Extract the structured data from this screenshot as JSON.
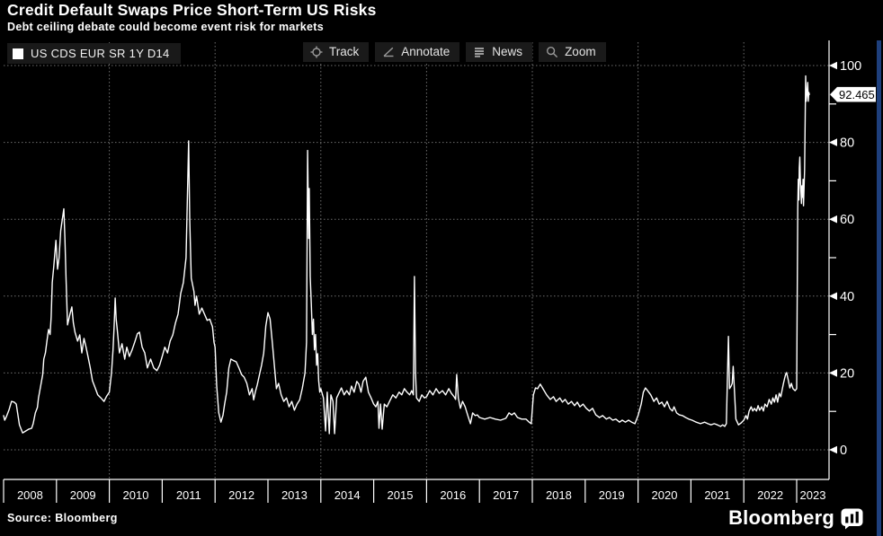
{
  "header": {
    "title": "Credit Default Swaps Price Short-Term US Risks",
    "subtitle": "Debt ceiling debate could become event risk for markets"
  },
  "legend": {
    "label": "US CDS EUR SR 1Y D14",
    "swatch_color": "#ffffff"
  },
  "toolbar": {
    "buttons": [
      {
        "label": "Track",
        "icon": "crosshair-icon"
      },
      {
        "label": "Annotate",
        "icon": "pencil-line-icon"
      },
      {
        "label": "News",
        "icon": "news-lines-icon"
      },
      {
        "label": "Zoom",
        "icon": "magnifier-icon"
      }
    ]
  },
  "price_label": {
    "value": "92.465"
  },
  "footer": {
    "source": "Source: Bloomberg",
    "brand": "Bloomberg"
  },
  "chart_data": {
    "type": "line",
    "title": "Credit Default Swaps Price Short-Term US Risks",
    "series_name": "US CDS EUR SR 1Y D14",
    "line_color": "#ffffff",
    "background_color": "#000000",
    "grid_color": "#6e6e6e",
    "grid": "dotted",
    "legend_position": "top-left",
    "ylim": [
      0,
      100
    ],
    "y_major_ticks": [
      0,
      20,
      40,
      60,
      80,
      100
    ],
    "y_minor_ticks": [
      10,
      30,
      50,
      70,
      90
    ],
    "x_labels": [
      "2008",
      "2009",
      "2010",
      "2011",
      "2012",
      "2013",
      "2014",
      "2015",
      "2016",
      "2017",
      "2018",
      "2019",
      "2020",
      "2021",
      "2022",
      "2023"
    ],
    "x_gridline_years": [
      2010,
      2012,
      2014,
      2016,
      2018,
      2020,
      2022
    ],
    "last_value": 92.465,
    "points": [
      [
        2008.0,
        8.9
      ],
      [
        2008.02,
        7.7
      ],
      [
        2008.05,
        8.5
      ],
      [
        2008.1,
        10.3
      ],
      [
        2008.15,
        12.6
      ],
      [
        2008.2,
        12.4
      ],
      [
        2008.24,
        11.9
      ],
      [
        2008.3,
        6.5
      ],
      [
        2008.36,
        4.4
      ],
      [
        2008.42,
        4.9
      ],
      [
        2008.48,
        5.4
      ],
      [
        2008.53,
        5.6
      ],
      [
        2008.56,
        6.8
      ],
      [
        2008.6,
        9.6
      ],
      [
        2008.64,
        11.0
      ],
      [
        2008.66,
        13.5
      ],
      [
        2008.7,
        16.6
      ],
      [
        2008.74,
        19.6
      ],
      [
        2008.76,
        23.6
      ],
      [
        2008.79,
        25.2
      ],
      [
        2008.82,
        28.3
      ],
      [
        2008.85,
        31.3
      ],
      [
        2008.88,
        30.0
      ],
      [
        2008.9,
        34.6
      ],
      [
        2008.92,
        43.5
      ],
      [
        2008.95,
        48.0
      ],
      [
        2008.99,
        54.5
      ],
      [
        2009.02,
        47.0
      ],
      [
        2009.05,
        50.0
      ],
      [
        2009.08,
        57.0
      ],
      [
        2009.11,
        60.0
      ],
      [
        2009.14,
        62.7
      ],
      [
        2009.16,
        55.0
      ],
      [
        2009.18,
        45.0
      ],
      [
        2009.21,
        32.5
      ],
      [
        2009.25,
        35.0
      ],
      [
        2009.29,
        37.2
      ],
      [
        2009.32,
        33.0
      ],
      [
        2009.35,
        30.6
      ],
      [
        2009.4,
        28.3
      ],
      [
        2009.44,
        29.9
      ],
      [
        2009.48,
        25.2
      ],
      [
        2009.52,
        29.0
      ],
      [
        2009.56,
        26.7
      ],
      [
        2009.6,
        24.0
      ],
      [
        2009.64,
        21.3
      ],
      [
        2009.68,
        18.0
      ],
      [
        2009.72,
        16.6
      ],
      [
        2009.78,
        14.3
      ],
      [
        2009.84,
        13.5
      ],
      [
        2009.9,
        12.6
      ],
      [
        2009.95,
        14.0
      ],
      [
        2010.0,
        15.0
      ],
      [
        2010.04,
        20.0
      ],
      [
        2010.07,
        26.0
      ],
      [
        2010.09,
        32.0
      ],
      [
        2010.11,
        39.5
      ],
      [
        2010.13,
        34.0
      ],
      [
        2010.15,
        31.3
      ],
      [
        2010.19,
        25.2
      ],
      [
        2010.24,
        27.6
      ],
      [
        2010.29,
        23.6
      ],
      [
        2010.33,
        26.7
      ],
      [
        2010.38,
        24.3
      ],
      [
        2010.43,
        26.0
      ],
      [
        2010.48,
        28.0
      ],
      [
        2010.53,
        30.2
      ],
      [
        2010.57,
        30.6
      ],
      [
        2010.62,
        26.7
      ],
      [
        2010.67,
        25.2
      ],
      [
        2010.72,
        21.3
      ],
      [
        2010.78,
        23.6
      ],
      [
        2010.84,
        21.3
      ],
      [
        2010.9,
        20.6
      ],
      [
        2010.95,
        22.0
      ],
      [
        2011.0,
        24.3
      ],
      [
        2011.05,
        26.7
      ],
      [
        2011.1,
        25.2
      ],
      [
        2011.15,
        28.3
      ],
      [
        2011.2,
        29.9
      ],
      [
        2011.25,
        33.0
      ],
      [
        2011.3,
        35.3
      ],
      [
        2011.35,
        40.7
      ],
      [
        2011.4,
        43.5
      ],
      [
        2011.45,
        50.0
      ],
      [
        2011.5,
        80.4
      ],
      [
        2011.52,
        60.0
      ],
      [
        2011.55,
        44.7
      ],
      [
        2011.6,
        41.2
      ],
      [
        2011.62,
        37.6
      ],
      [
        2011.65,
        40.0
      ],
      [
        2011.7,
        35.3
      ],
      [
        2011.75,
        36.9
      ],
      [
        2011.8,
        35.3
      ],
      [
        2011.85,
        33.7
      ],
      [
        2011.9,
        34.0
      ],
      [
        2011.95,
        32.0
      ],
      [
        2011.98,
        28.0
      ],
      [
        2012.0,
        26.7
      ],
      [
        2012.03,
        16.6
      ],
      [
        2012.07,
        9.6
      ],
      [
        2012.11,
        7.2
      ],
      [
        2012.15,
        9.0
      ],
      [
        2012.18,
        11.9
      ],
      [
        2012.22,
        15.0
      ],
      [
        2012.26,
        21.3
      ],
      [
        2012.3,
        23.6
      ],
      [
        2012.35,
        23.2
      ],
      [
        2012.4,
        22.9
      ],
      [
        2012.45,
        21.3
      ],
      [
        2012.5,
        19.6
      ],
      [
        2012.55,
        18.9
      ],
      [
        2012.6,
        17.3
      ],
      [
        2012.65,
        14.3
      ],
      [
        2012.7,
        15.9
      ],
      [
        2012.73,
        13.0
      ],
      [
        2012.76,
        15.0
      ],
      [
        2012.8,
        17.0
      ],
      [
        2012.84,
        19.6
      ],
      [
        2012.88,
        22.0
      ],
      [
        2012.92,
        25.2
      ],
      [
        2012.96,
        32.2
      ],
      [
        2013.0,
        35.7
      ],
      [
        2013.04,
        34.0
      ],
      [
        2013.08,
        28.3
      ],
      [
        2013.12,
        22.0
      ],
      [
        2013.16,
        15.9
      ],
      [
        2013.2,
        17.3
      ],
      [
        2013.25,
        14.3
      ],
      [
        2013.3,
        12.6
      ],
      [
        2013.35,
        13.5
      ],
      [
        2013.4,
        11.2
      ],
      [
        2013.45,
        12.6
      ],
      [
        2013.5,
        10.3
      ],
      [
        2013.55,
        11.9
      ],
      [
        2013.6,
        13.0
      ],
      [
        2013.65,
        16.0
      ],
      [
        2013.7,
        20.0
      ],
      [
        2013.73,
        28.0
      ],
      [
        2013.75,
        77.9
      ],
      [
        2013.77,
        55.0
      ],
      [
        2013.78,
        68.0
      ],
      [
        2013.8,
        45.0
      ],
      [
        2013.82,
        38.0
      ],
      [
        2013.84,
        30.0
      ],
      [
        2013.86,
        34.0
      ],
      [
        2013.88,
        26.0
      ],
      [
        2013.9,
        30.0
      ],
      [
        2013.92,
        22.0
      ],
      [
        2013.94,
        25.0
      ],
      [
        2013.96,
        18.0
      ],
      [
        2013.98,
        15.0
      ],
      [
        2014.0,
        15.9
      ],
      [
        2014.05,
        13.5
      ],
      [
        2014.09,
        4.9
      ],
      [
        2014.12,
        15.0
      ],
      [
        2014.16,
        4.2
      ],
      [
        2014.19,
        14.3
      ],
      [
        2014.23,
        12.6
      ],
      [
        2014.26,
        4.2
      ],
      [
        2014.3,
        13.5
      ],
      [
        2014.34,
        14.7
      ],
      [
        2014.39,
        16.1
      ],
      [
        2014.44,
        14.3
      ],
      [
        2014.49,
        15.4
      ],
      [
        2014.54,
        14.3
      ],
      [
        2014.58,
        16.6
      ],
      [
        2014.63,
        15.0
      ],
      [
        2014.68,
        17.8
      ],
      [
        2014.72,
        17.1
      ],
      [
        2014.76,
        15.0
      ],
      [
        2014.8,
        17.8
      ],
      [
        2014.85,
        18.9
      ],
      [
        2014.9,
        15.0
      ],
      [
        2014.95,
        13.5
      ],
      [
        2015.0,
        11.9
      ],
      [
        2015.04,
        11.2
      ],
      [
        2015.08,
        12.6
      ],
      [
        2015.1,
        5.6
      ],
      [
        2015.13,
        11.9
      ],
      [
        2015.16,
        5.4
      ],
      [
        2015.2,
        11.9
      ],
      [
        2015.25,
        11.2
      ],
      [
        2015.3,
        12.6
      ],
      [
        2015.36,
        14.3
      ],
      [
        2015.42,
        13.5
      ],
      [
        2015.48,
        15.0
      ],
      [
        2015.53,
        14.3
      ],
      [
        2015.58,
        15.9
      ],
      [
        2015.63,
        15.0
      ],
      [
        2015.68,
        14.3
      ],
      [
        2015.72,
        15.4
      ],
      [
        2015.75,
        14.3
      ],
      [
        2015.77,
        45.1
      ],
      [
        2015.79,
        20.0
      ],
      [
        2015.81,
        13.5
      ],
      [
        2015.86,
        12.6
      ],
      [
        2015.91,
        14.3
      ],
      [
        2015.96,
        13.5
      ],
      [
        2016.0,
        13.8
      ],
      [
        2016.06,
        15.4
      ],
      [
        2016.12,
        14.3
      ],
      [
        2016.18,
        15.9
      ],
      [
        2016.24,
        14.7
      ],
      [
        2016.3,
        15.4
      ],
      [
        2016.36,
        14.3
      ],
      [
        2016.42,
        15.9
      ],
      [
        2016.47,
        14.7
      ],
      [
        2016.52,
        13.8
      ],
      [
        2016.55,
        13.1
      ],
      [
        2016.57,
        19.6
      ],
      [
        2016.6,
        13.5
      ],
      [
        2016.64,
        10.8
      ],
      [
        2016.68,
        12.6
      ],
      [
        2016.73,
        11.2
      ],
      [
        2016.78,
        8.9
      ],
      [
        2016.83,
        6.8
      ],
      [
        2016.87,
        9.6
      ],
      [
        2016.92,
        8.9
      ],
      [
        2016.96,
        9.1
      ],
      [
        2017.0,
        8.4
      ],
      [
        2017.1,
        8.0
      ],
      [
        2017.2,
        8.4
      ],
      [
        2017.3,
        8.0
      ],
      [
        2017.4,
        7.7
      ],
      [
        2017.5,
        8.2
      ],
      [
        2017.56,
        9.6
      ],
      [
        2017.61,
        9.1
      ],
      [
        2017.66,
        9.6
      ],
      [
        2017.72,
        8.4
      ],
      [
        2017.8,
        8.0
      ],
      [
        2017.88,
        8.0
      ],
      [
        2017.94,
        7.2
      ],
      [
        2017.98,
        6.8
      ],
      [
        2018.02,
        14.3
      ],
      [
        2018.06,
        16.1
      ],
      [
        2018.1,
        15.9
      ],
      [
        2018.15,
        17.1
      ],
      [
        2018.2,
        15.9
      ],
      [
        2018.27,
        14.3
      ],
      [
        2018.34,
        13.1
      ],
      [
        2018.4,
        13.8
      ],
      [
        2018.45,
        12.6
      ],
      [
        2018.52,
        13.5
      ],
      [
        2018.57,
        12.4
      ],
      [
        2018.62,
        13.1
      ],
      [
        2018.68,
        11.9
      ],
      [
        2018.74,
        12.6
      ],
      [
        2018.8,
        11.5
      ],
      [
        2018.85,
        12.4
      ],
      [
        2018.9,
        11.2
      ],
      [
        2018.96,
        11.9
      ],
      [
        2019.02,
        10.8
      ],
      [
        2019.08,
        10.1
      ],
      [
        2019.14,
        10.8
      ],
      [
        2019.2,
        9.1
      ],
      [
        2019.27,
        8.4
      ],
      [
        2019.33,
        8.9
      ],
      [
        2019.4,
        8.0
      ],
      [
        2019.46,
        8.4
      ],
      [
        2019.52,
        7.7
      ],
      [
        2019.58,
        8.0
      ],
      [
        2019.65,
        7.2
      ],
      [
        2019.7,
        7.7
      ],
      [
        2019.76,
        7.2
      ],
      [
        2019.82,
        7.7
      ],
      [
        2019.88,
        7.2
      ],
      [
        2019.94,
        6.8
      ],
      [
        2020.0,
        8.9
      ],
      [
        2020.06,
        11.9
      ],
      [
        2020.1,
        15.0
      ],
      [
        2020.14,
        16.1
      ],
      [
        2020.18,
        15.4
      ],
      [
        2020.24,
        14.3
      ],
      [
        2020.3,
        12.6
      ],
      [
        2020.35,
        13.5
      ],
      [
        2020.4,
        11.9
      ],
      [
        2020.45,
        12.4
      ],
      [
        2020.5,
        11.2
      ],
      [
        2020.55,
        12.6
      ],
      [
        2020.6,
        10.8
      ],
      [
        2020.65,
        10.1
      ],
      [
        2020.68,
        11.2
      ],
      [
        2020.73,
        9.6
      ],
      [
        2020.78,
        9.1
      ],
      [
        2020.84,
        8.9
      ],
      [
        2020.9,
        8.4
      ],
      [
        2020.96,
        8.0
      ],
      [
        2021.02,
        7.7
      ],
      [
        2021.1,
        7.2
      ],
      [
        2021.18,
        6.8
      ],
      [
        2021.26,
        7.2
      ],
      [
        2021.32,
        6.8
      ],
      [
        2021.38,
        6.5
      ],
      [
        2021.44,
        6.8
      ],
      [
        2021.5,
        6.5
      ],
      [
        2021.56,
        6.1
      ],
      [
        2021.6,
        6.5
      ],
      [
        2021.64,
        6.1
      ],
      [
        2021.67,
        6.8
      ],
      [
        2021.69,
        18.9
      ],
      [
        2021.71,
        29.5
      ],
      [
        2021.73,
        15.9
      ],
      [
        2021.76,
        16.6
      ],
      [
        2021.78,
        17.3
      ],
      [
        2021.8,
        21.7
      ],
      [
        2021.83,
        13.5
      ],
      [
        2021.85,
        8.0
      ],
      [
        2021.9,
        6.5
      ],
      [
        2021.95,
        7.0
      ],
      [
        2022.0,
        7.7
      ],
      [
        2022.04,
        8.9
      ],
      [
        2022.07,
        8.0
      ],
      [
        2022.1,
        10.1
      ],
      [
        2022.14,
        11.2
      ],
      [
        2022.17,
        10.1
      ],
      [
        2022.2,
        10.8
      ],
      [
        2022.24,
        10.1
      ],
      [
        2022.27,
        11.5
      ],
      [
        2022.3,
        10.3
      ],
      [
        2022.34,
        11.2
      ],
      [
        2022.37,
        10.1
      ],
      [
        2022.4,
        11.9
      ],
      [
        2022.44,
        11.2
      ],
      [
        2022.48,
        13.1
      ],
      [
        2022.52,
        11.9
      ],
      [
        2022.55,
        13.5
      ],
      [
        2022.58,
        12.4
      ],
      [
        2022.61,
        14.3
      ],
      [
        2022.64,
        12.4
      ],
      [
        2022.67,
        14.7
      ],
      [
        2022.7,
        13.8
      ],
      [
        2022.73,
        15.9
      ],
      [
        2022.75,
        17.3
      ],
      [
        2022.77,
        18.5
      ],
      [
        2022.79,
        19.6
      ],
      [
        2022.81,
        20.1
      ],
      [
        2022.84,
        18.2
      ],
      [
        2022.87,
        16.1
      ],
      [
        2022.9,
        17.3
      ],
      [
        2022.93,
        15.9
      ],
      [
        2022.97,
        15.4
      ],
      [
        2023.0,
        15.9
      ],
      [
        2023.01,
        40.0
      ],
      [
        2023.02,
        62.7
      ],
      [
        2023.03,
        70.4
      ],
      [
        2023.04,
        65.0
      ],
      [
        2023.05,
        73.4
      ],
      [
        2023.06,
        76.2
      ],
      [
        2023.07,
        70.4
      ],
      [
        2023.08,
        67.3
      ],
      [
        2023.09,
        64.1
      ],
      [
        2023.1,
        68.7
      ],
      [
        2023.11,
        65.7
      ],
      [
        2023.12,
        70.4
      ],
      [
        2023.13,
        63.5
      ],
      [
        2023.15,
        72.7
      ],
      [
        2023.17,
        97.3
      ],
      [
        2023.18,
        90.7
      ],
      [
        2023.19,
        92.1
      ],
      [
        2023.21,
        95.6
      ],
      [
        2023.22,
        90.7
      ],
      [
        2023.23,
        93.0
      ],
      [
        2023.24,
        92.465
      ]
    ]
  }
}
